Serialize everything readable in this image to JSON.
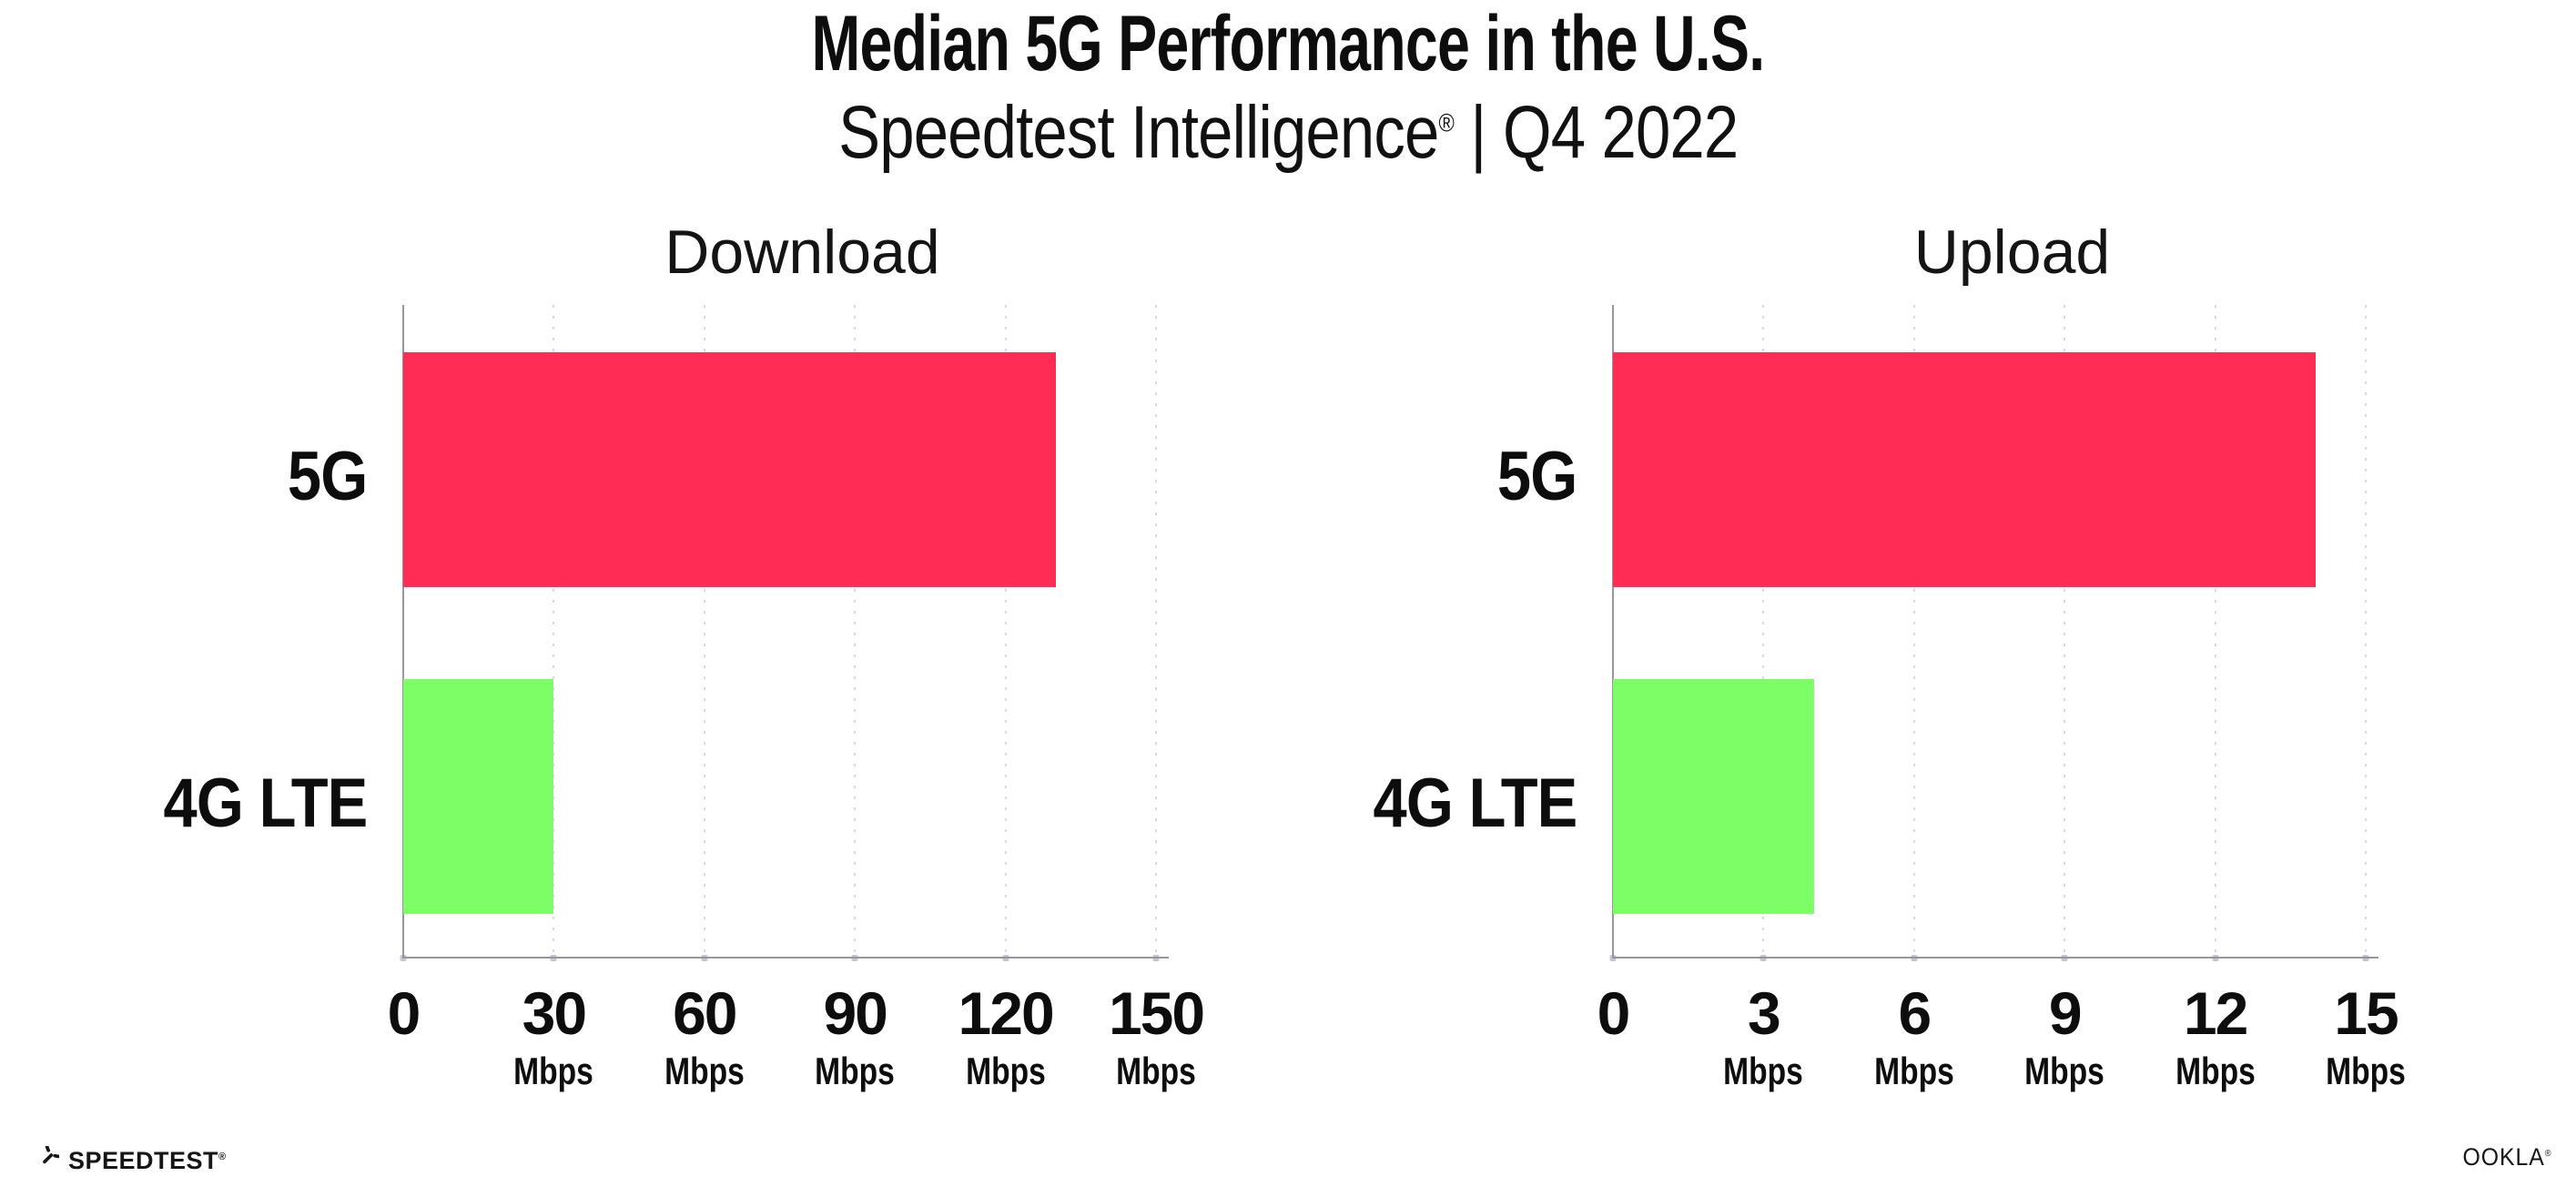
{
  "page": {
    "title": "Median 5G Performance in the U.S.",
    "subtitle_brand": "Speedtest Intelligence",
    "subtitle_reg": "®",
    "subtitle_separator": "|",
    "subtitle_period": "Q4 2022"
  },
  "colors": {
    "bar_5g": "#ff2d55",
    "bar_4g_lte": "#7dfd66",
    "axis_line": "#96969c",
    "gridline_dot": "#b9b9cd",
    "tick_dot": "#c6c6d2",
    "text": "#0d0d0d"
  },
  "chart_data": [
    {
      "type": "bar",
      "orientation": "horizontal",
      "title": "Download",
      "categories": [
        "5G",
        "4G LTE"
      ],
      "values": [
        130,
        30
      ],
      "unit": "Mbps",
      "xlim": [
        0,
        150
      ],
      "xticks": [
        0,
        30,
        60,
        90,
        120,
        150
      ],
      "grid": "vertical-dotted",
      "legend": "none",
      "bar_colors": [
        "#ff2d55",
        "#7dfd66"
      ]
    },
    {
      "type": "bar",
      "orientation": "horizontal",
      "title": "Upload",
      "categories": [
        "5G",
        "4G LTE"
      ],
      "values": [
        14,
        4
      ],
      "unit": "Mbps",
      "xlim": [
        0,
        15
      ],
      "xticks": [
        0,
        3,
        6,
        9,
        12,
        15
      ],
      "grid": "vertical-dotted",
      "legend": "none",
      "bar_colors": [
        "#ff2d55",
        "#7dfd66"
      ]
    }
  ],
  "footer": {
    "speedtest_label": "SPEEDTEST",
    "speedtest_reg": "®",
    "ookla_label": "OOKLA",
    "ookla_reg": "®"
  }
}
